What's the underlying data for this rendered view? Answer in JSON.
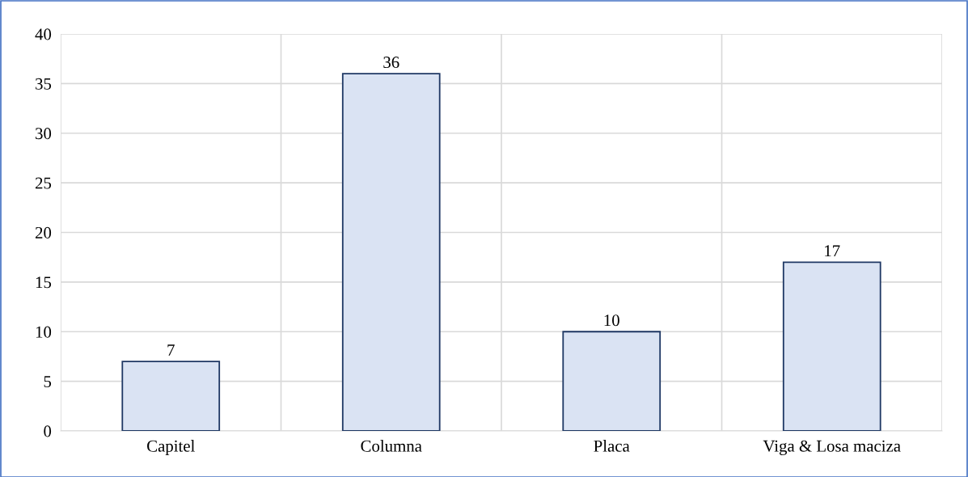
{
  "chart_data": {
    "type": "bar",
    "categories": [
      "Capitel",
      "Columna",
      "Placa",
      "Viga & Losa maciza"
    ],
    "values": [
      7,
      36,
      10,
      17
    ],
    "color": "#dae3f3",
    "ylim": [
      0,
      40
    ],
    "yticks": [
      0,
      5,
      10,
      15,
      20,
      25,
      30,
      35,
      40
    ],
    "grid": true,
    "data_labels": true
  }
}
